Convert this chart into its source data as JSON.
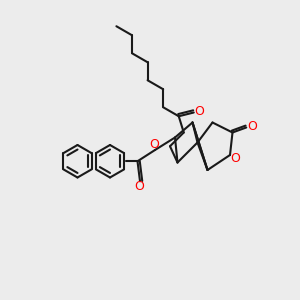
{
  "background_color": "#ececec",
  "bond_color": "#1a1a1a",
  "oxygen_color": "#ff0000",
  "bond_width": 1.5,
  "figsize": [
    3.0,
    3.0
  ],
  "dpi": 100,
  "xlim": [
    0,
    12
  ],
  "ylim": [
    0,
    12
  ]
}
